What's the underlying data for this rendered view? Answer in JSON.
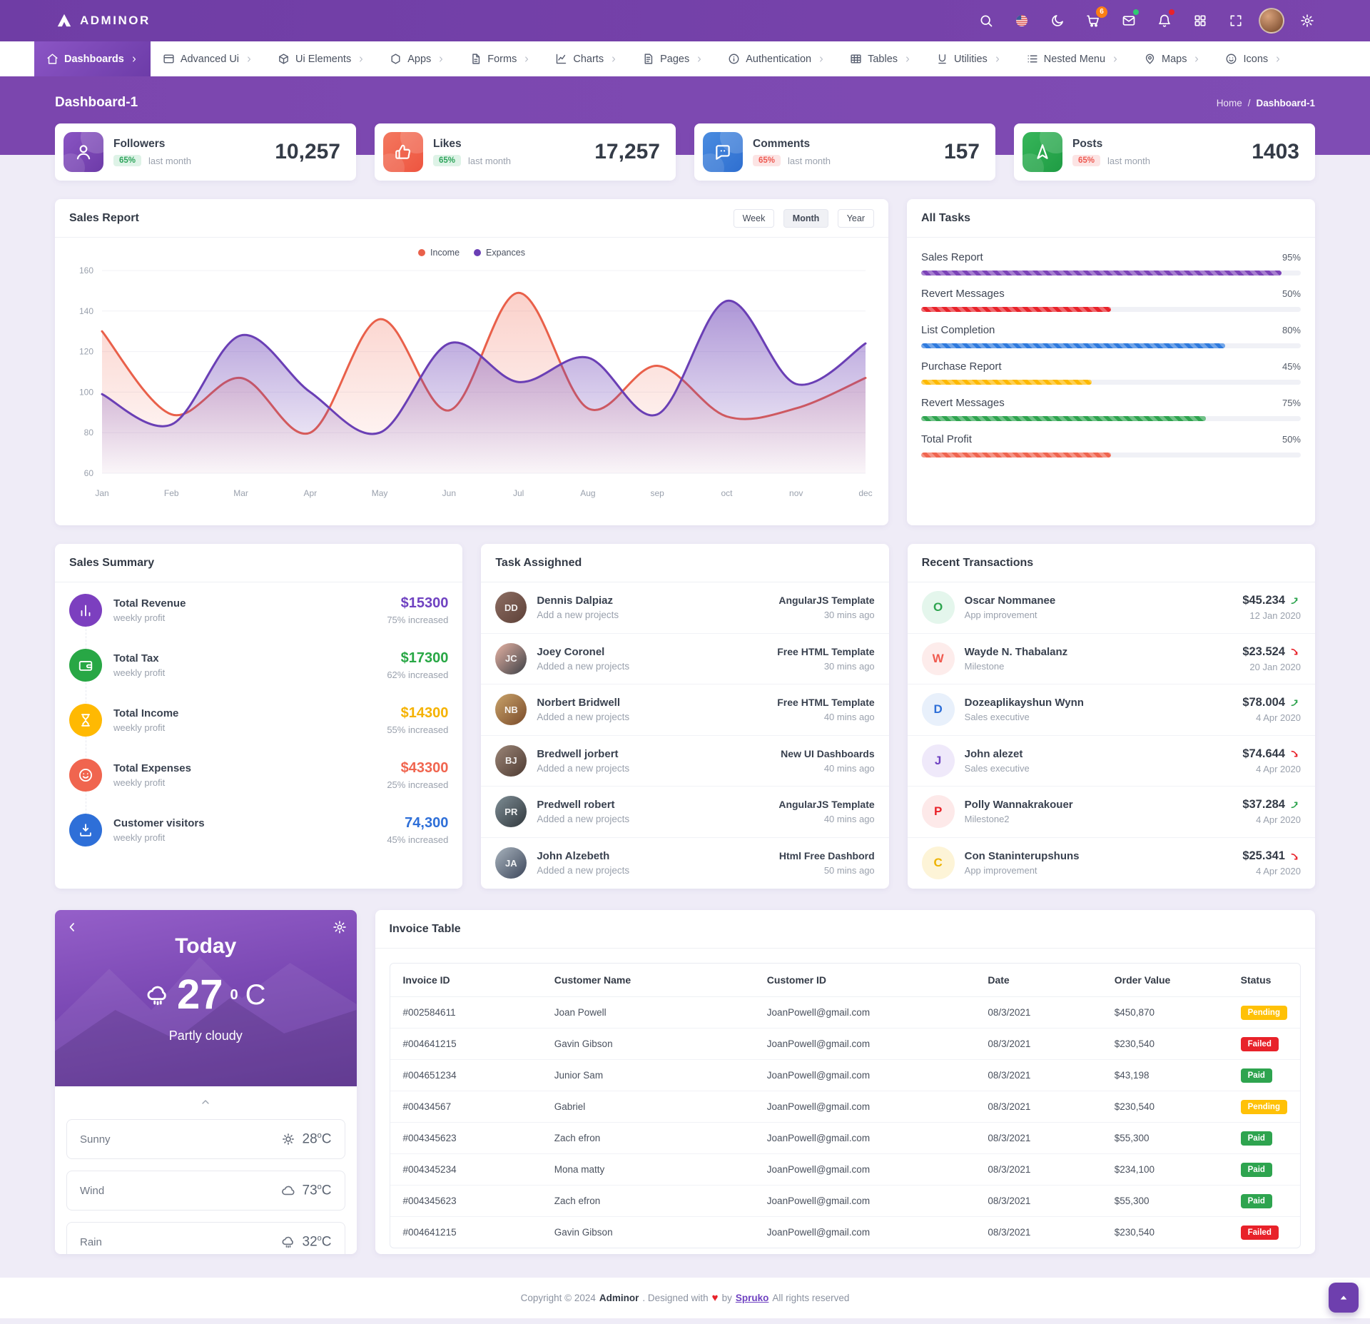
{
  "brand": {
    "name": "ADMINOR"
  },
  "topbar": {
    "icons": [
      {
        "name": "search",
        "icon": "search"
      },
      {
        "name": "language",
        "icon": "flag"
      },
      {
        "name": "dark-mode",
        "icon": "moon"
      },
      {
        "name": "cart",
        "icon": "cart",
        "badge": "6",
        "badge_bg": "#fd7e14"
      },
      {
        "name": "messages",
        "icon": "mail",
        "dot": "#2ecc71"
      },
      {
        "name": "notifications",
        "icon": "bell",
        "dot": "#e8222a"
      },
      {
        "name": "apps-grid",
        "icon": "grid"
      },
      {
        "name": "fullscreen",
        "icon": "full"
      }
    ]
  },
  "nav": {
    "items": [
      {
        "name": "nav-dashboards",
        "label": "Dashboards",
        "icon": "home",
        "state": "active"
      },
      {
        "name": "nav-advanced-ui",
        "label": "Advanced Ui",
        "icon": "window"
      },
      {
        "name": "nav-ui-elements",
        "label": "Ui Elements",
        "icon": "box"
      },
      {
        "name": "nav-apps",
        "label": "Apps",
        "icon": "hexagon"
      },
      {
        "name": "nav-forms",
        "label": "Forms",
        "icon": "file"
      },
      {
        "name": "nav-charts",
        "label": "Charts",
        "icon": "chart"
      },
      {
        "name": "nav-pages",
        "label": "Pages",
        "icon": "page"
      },
      {
        "name": "nav-authentication",
        "label": "Authentication",
        "icon": "info"
      },
      {
        "name": "nav-tables",
        "label": "Tables",
        "icon": "table"
      },
      {
        "name": "nav-utilities",
        "label": "Utilities",
        "icon": "underline"
      },
      {
        "name": "nav-nested-menu",
        "label": "Nested Menu",
        "icon": "list"
      },
      {
        "name": "nav-maps",
        "label": "Maps",
        "icon": "pin"
      },
      {
        "name": "nav-icons",
        "label": "Icons",
        "icon": "smile"
      }
    ]
  },
  "breadcrumb": {
    "title": "Dashboard-1",
    "home": "Home",
    "sep": "/",
    "current": "Dashboard-1"
  },
  "stats": [
    {
      "name": "stat-followers",
      "label": "Followers",
      "badge": "65%",
      "badge_bg": "#def3e7",
      "badge_fg": "#2ea45b",
      "caption": "last month",
      "value": "10,257",
      "icon": "user",
      "tile": "linear-gradient(135deg,#8a55c3,#6d3ba8)"
    },
    {
      "name": "stat-likes",
      "label": "Likes",
      "badge": "65%",
      "badge_bg": "#def3e7",
      "badge_fg": "#2ea45b",
      "caption": "last month",
      "value": "17,257",
      "icon": "thumb",
      "tile": "linear-gradient(135deg,#f3785f,#ee5540)"
    },
    {
      "name": "stat-comments",
      "label": "Comments",
      "badge": "65%",
      "badge_bg": "#fce4e4",
      "badge_fg": "#ee5a52",
      "caption": "last month",
      "value": "157",
      "icon": "chat",
      "tile": "linear-gradient(135deg,#4a8ce0,#2f6fd0)"
    },
    {
      "name": "stat-posts",
      "label": "Posts",
      "badge": "65%",
      "badge_bg": "#fce4e4",
      "badge_fg": "#ee5a52",
      "caption": "last month",
      "value": "1403",
      "icon": "send",
      "tile": "linear-gradient(135deg,#37b65a,#1f9c44)"
    }
  ],
  "sales_report": {
    "title": "Sales Report",
    "tabs": [
      {
        "label": "Week"
      },
      {
        "label": "Month",
        "state": "active"
      },
      {
        "label": "Year"
      }
    ]
  },
  "chart_data": {
    "type": "area",
    "title": "Sales Report",
    "categories": [
      "Jan",
      "Feb",
      "Mar",
      "Apr",
      "May",
      "Jun",
      "Jul",
      "Aug",
      "sep",
      "oct",
      "nov",
      "dec"
    ],
    "series": [
      {
        "name": "Income",
        "color": "#e9604a",
        "values": [
          130,
          89,
          107,
          80,
          136,
          91,
          149,
          92,
          113,
          88,
          92,
          107
        ]
      },
      {
        "name": "Expances",
        "color": "#6a3fb5",
        "values": [
          99,
          84,
          128,
          100,
          80,
          124,
          105,
          117,
          89,
          145,
          104,
          124
        ]
      }
    ],
    "ylim": [
      60,
      160
    ],
    "yticks": [
      60,
      80,
      100,
      120,
      140,
      160
    ],
    "grid": "horizontal",
    "legend_position": "top"
  },
  "all_tasks": {
    "title": "All Tasks",
    "items": [
      {
        "label": "Sales Report",
        "pct": "95%",
        "width": "95%",
        "color": "#7c43b8"
      },
      {
        "label": "Revert Messages",
        "pct": "50%",
        "width": "50%",
        "color": "#e8222a"
      },
      {
        "label": "List Completion",
        "pct": "80%",
        "width": "80%",
        "color": "#2f7bde"
      },
      {
        "label": "Purchase Report",
        "pct": "45%",
        "width": "45%",
        "color": "#fdb902"
      },
      {
        "label": "Revert Messages",
        "pct": "75%",
        "width": "75%",
        "color": "#2ea44f"
      },
      {
        "label": "Total Profit",
        "pct": "50%",
        "width": "50%",
        "color": "#f0654f"
      }
    ]
  },
  "sales_summary": {
    "title": "Sales Summary",
    "items": [
      {
        "label": "Total Revenue",
        "caption": "weekly profit",
        "value": "$15300",
        "vcolor": "#6f42c1",
        "sub": "75% increased",
        "icon": "bars",
        "bg": "#7c3fbf"
      },
      {
        "label": "Total Tax",
        "caption": "weekly profit",
        "value": "$17300",
        "vcolor": "#28a745",
        "sub": "62% increased",
        "icon": "wallet",
        "bg": "#28a745"
      },
      {
        "label": "Total Income",
        "caption": "weekly profit",
        "value": "$14300",
        "vcolor": "#f5b200",
        "sub": "55% increased",
        "icon": "hourglass",
        "bg": "#ffb902"
      },
      {
        "label": "Total Expenses",
        "caption": "weekly profit",
        "value": "$43300",
        "vcolor": "#f0654f",
        "sub": "25% increased",
        "icon": "smile",
        "bg": "#f0654f"
      },
      {
        "label": "Customer visitors",
        "caption": "weekly profit",
        "value": "74,300",
        "vcolor": "#2e6fd8",
        "sub": "45% increased",
        "icon": "download",
        "bg": "#2e6fd8"
      }
    ]
  },
  "tasks_assigned": {
    "title": "Task Assighned",
    "items": [
      {
        "name": "Dennis Dalpiaz",
        "action": "Add a new projects",
        "project": "AngularJS Template",
        "time": "30 mins ago",
        "initials": "DD",
        "av": "linear-gradient(135deg,#8d6e63,#5d4037)"
      },
      {
        "name": "Joey Coronel",
        "action": "Added a new projects",
        "project": "Free HTML Template",
        "time": "30 mins ago",
        "initials": "JC",
        "av": "linear-gradient(135deg,#e8b3a4,#3a3f45)"
      },
      {
        "name": "Norbert Bridwell",
        "action": "Added a new projects",
        "project": "Free HTML Template",
        "time": "40 mins ago",
        "initials": "NB",
        "av": "linear-gradient(135deg,#c9a36a,#7a4b2a)"
      },
      {
        "name": "Bredwell jorbert",
        "action": "Added a new projects",
        "project": "New UI Dashboards",
        "time": "40 mins ago",
        "initials": "BJ",
        "av": "linear-gradient(135deg,#9b8577,#4e3b32)"
      },
      {
        "name": "Predwell robert",
        "action": "Added a new projects",
        "project": "AngularJS Template",
        "time": "40 mins ago",
        "initials": "PR",
        "av": "linear-gradient(135deg,#7e8d95,#31383d)"
      },
      {
        "name": "John Alzebeth",
        "action": "Added a new projects",
        "project": "Html Free Dashbord",
        "time": "50 mins ago",
        "initials": "JA",
        "av": "linear-gradient(135deg,#a8b3bd,#3c465a)"
      }
    ]
  },
  "transactions": {
    "title": "Recent Transactions",
    "items": [
      {
        "initial": "O",
        "name": "Oscar Nommanee",
        "role": "App improvement",
        "amount": "$45.234",
        "trend": "arrow-up",
        "trend_color": "#2ea44f",
        "date": "12 Jan 2020",
        "abg": "#e4f6ec",
        "afg": "#2ea44f"
      },
      {
        "initial": "W",
        "name": "Wayde N. Thabalanz",
        "role": "Milestone",
        "amount": "$23.524",
        "trend": "arrow-down",
        "trend_color": "#e8222a",
        "date": "20 Jan 2020",
        "abg": "#fdeceb",
        "afg": "#f05a4f"
      },
      {
        "initial": "D",
        "name": "Dozeaplikayshun Wynn",
        "role": "Sales executive",
        "amount": "$78.004",
        "trend": "arrow-up",
        "trend_color": "#2ea44f",
        "date": "4 Apr 2020",
        "abg": "#e8f0fb",
        "afg": "#2e6fd8"
      },
      {
        "initial": "J",
        "name": "John alezet",
        "role": "Sales executive",
        "amount": "$74.644",
        "trend": "arrow-down",
        "trend_color": "#e8222a",
        "date": "4 Apr 2020",
        "abg": "#efe9fa",
        "afg": "#6f42c1"
      },
      {
        "initial": "P",
        "name": "Polly Wannakrakouer",
        "role": "Milestone2",
        "amount": "$37.284",
        "trend": "arrow-up",
        "trend_color": "#2ea44f",
        "date": "4 Apr 2020",
        "abg": "#fde9e9",
        "afg": "#e8222a"
      },
      {
        "initial": "C",
        "name": "Con Staninterupshuns",
        "role": "App improvement",
        "amount": "$25.341",
        "trend": "arrow-down",
        "trend_color": "#e8222a",
        "date": "4 Apr 2020",
        "abg": "#fdf4d7",
        "afg": "#edb200"
      }
    ]
  },
  "weather": {
    "today": "Today",
    "temp": "27",
    "deg": "0",
    "unit": "C",
    "condition": "Partly cloudy",
    "rows": [
      {
        "label": "Sunny",
        "icon": "sun",
        "value": "28",
        "deg": "o",
        "unit": "C"
      },
      {
        "label": "Wind",
        "icon": "cloud",
        "value": "73",
        "deg": "o",
        "unit": "C"
      },
      {
        "label": "Rain",
        "icon": "rain",
        "value": "32",
        "deg": "o",
        "unit": "C"
      }
    ]
  },
  "invoice": {
    "title": "Invoice Table",
    "columns": [
      "Invoice ID",
      "Customer Name",
      "Customer ID",
      "Date",
      "Order Value",
      "Status"
    ],
    "rows": [
      {
        "id": "#002584611",
        "name": "Joan Powell",
        "email": "JoanPowell@gmail.com",
        "date": "08/3/2021",
        "value": "$450,870",
        "status": "Pending",
        "status_bg": "#ffc107"
      },
      {
        "id": "#004641215",
        "name": "Gavin Gibson",
        "email": "JoanPowell@gmail.com",
        "date": "08/3/2021",
        "value": "$230,540",
        "status": "Failed",
        "status_bg": "#e8222a"
      },
      {
        "id": "#004651234",
        "name": "Junior Sam",
        "email": "JoanPowell@gmail.com",
        "date": "08/3/2021",
        "value": "$43,198",
        "status": "Paid",
        "status_bg": "#2ea44f"
      },
      {
        "id": "#00434567",
        "name": "Gabriel",
        "email": "JoanPowell@gmail.com",
        "date": "08/3/2021",
        "value": "$230,540",
        "status": "Pending",
        "status_bg": "#ffc107"
      },
      {
        "id": "#004345623",
        "name": "Zach efron",
        "email": "JoanPowell@gmail.com",
        "date": "08/3/2021",
        "value": "$55,300",
        "status": "Paid",
        "status_bg": "#2ea44f"
      },
      {
        "id": "#004345234",
        "name": "Mona matty",
        "email": "JoanPowell@gmail.com",
        "date": "08/3/2021",
        "value": "$234,100",
        "status": "Paid",
        "status_bg": "#2ea44f"
      },
      {
        "id": "#004345623",
        "name": "Zach efron",
        "email": "JoanPowell@gmail.com",
        "date": "08/3/2021",
        "value": "$55,300",
        "status": "Paid",
        "status_bg": "#2ea44f"
      },
      {
        "id": "#004641215",
        "name": "Gavin Gibson",
        "email": "JoanPowell@gmail.com",
        "date": "08/3/2021",
        "value": "$230,540",
        "status": "Failed",
        "status_bg": "#e8222a"
      }
    ]
  },
  "footer": {
    "part1": "Copyright © 2024",
    "brand": "Adminor",
    "part2": ". Designed with",
    "heart": "♥",
    "part3": "by",
    "link": "Spruko",
    "part4": "All rights reserved"
  }
}
